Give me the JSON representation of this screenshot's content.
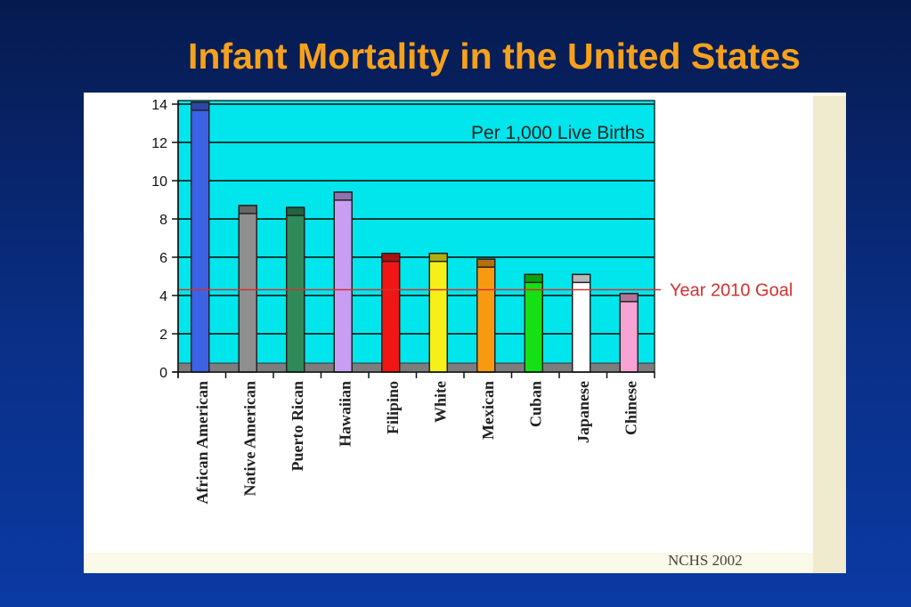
{
  "slide": {
    "title": "Infant Mortality in the United States",
    "source": "NCHS 2002"
  },
  "chart_data": {
    "type": "bar",
    "title": "Infant Mortality in the United States",
    "xlabel": "",
    "ylabel": "",
    "annotation": "Per 1,000 Live Births",
    "ylim": [
      0,
      14
    ],
    "yticks": [
      0,
      2,
      4,
      6,
      8,
      10,
      12,
      14
    ],
    "grid": true,
    "categories": [
      "African American",
      "Native American",
      "Puerto Rican",
      "Hawaiian",
      "Filipino",
      "White",
      "Mexican",
      "Cuban",
      "Japanese",
      "Chinese"
    ],
    "values": [
      14.1,
      8.7,
      8.6,
      9.4,
      6.2,
      6.2,
      5.9,
      5.1,
      5.1,
      4.1
    ],
    "colors": [
      "#3d62e6",
      "#8f8f8f",
      "#2f8a5a",
      "#c89ef2",
      "#f01616",
      "#f6f018",
      "#f89a10",
      "#14e014",
      "#ffffff",
      "#f7a3d3"
    ],
    "reference_line": {
      "label": "Year 2010 Goal",
      "value": 4.3,
      "color": "#d43030"
    },
    "plot_background": "#00e6ec"
  }
}
